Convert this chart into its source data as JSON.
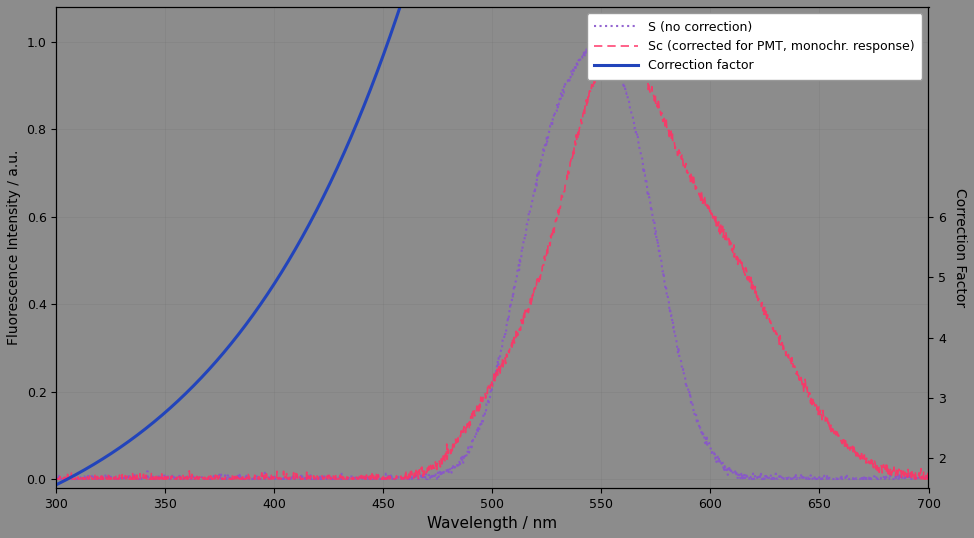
{
  "title": "",
  "xlabel": "Wavelength / nm",
  "ylabel_left": "Fluorescence Intensity / a.u.",
  "ylabel_right": "Correction Factor",
  "xlim": [
    300,
    700
  ],
  "ylim_left": [
    -0.02,
    1.08
  ],
  "ylim_right": [
    1.5,
    9.5
  ],
  "yticks_left": [
    0.0,
    0.2,
    0.4,
    0.6,
    0.8,
    1.0
  ],
  "yticks_right": [
    2,
    3,
    4,
    5,
    6
  ],
  "xticks": [
    300,
    350,
    400,
    450,
    500,
    550,
    600,
    650,
    700
  ],
  "background_color": "#8c8c8c",
  "line_S_color": "#8855cc",
  "line_Sc_color": "#ff3366",
  "line_CF_color": "#2244bb",
  "legend_labels": [
    "S (no correction)",
    "Sc (corrected for PMT, monochr. response)",
    "Correction factor"
  ]
}
